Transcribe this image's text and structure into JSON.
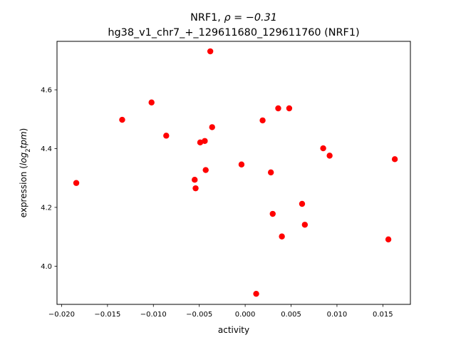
{
  "chart_data": {
    "type": "scatter",
    "title_line1_prefix": "NRF1, ",
    "title_line1_math": "ρ = −0.31",
    "title_line2": "hg38_v1_chr7_+_129611680_129611760 (NRF1)",
    "xlabel": "activity",
    "ylabel_prefix": "expression (",
    "ylabel_math": "log",
    "ylabel_sub": "2",
    "ylabel_math2": "tpm",
    "ylabel_suffix": ")",
    "xlim": [
      -0.0205,
      0.018
    ],
    "ylim": [
      3.87,
      4.765
    ],
    "x_ticks": [
      {
        "value": -0.02,
        "label": "−0.020"
      },
      {
        "value": -0.015,
        "label": "−0.015"
      },
      {
        "value": -0.01,
        "label": "−0.010"
      },
      {
        "value": -0.005,
        "label": "−0.005"
      },
      {
        "value": 0.0,
        "label": "0.000"
      },
      {
        "value": 0.005,
        "label": "0.005"
      },
      {
        "value": 0.01,
        "label": "0.010"
      },
      {
        "value": 0.015,
        "label": "0.015"
      }
    ],
    "y_ticks": [
      {
        "value": 4.0,
        "label": "4.0"
      },
      {
        "value": 4.2,
        "label": "4.2"
      },
      {
        "value": 4.4,
        "label": "4.4"
      },
      {
        "value": 4.6,
        "label": "4.6"
      }
    ],
    "marker_color": "#ff0000",
    "grid": false,
    "points": [
      {
        "x": -0.0184,
        "y": 4.283
      },
      {
        "x": -0.0134,
        "y": 4.498
      },
      {
        "x": -0.0102,
        "y": 4.557
      },
      {
        "x": -0.0086,
        "y": 4.444
      },
      {
        "x": -0.0055,
        "y": 4.294
      },
      {
        "x": -0.0054,
        "y": 4.265
      },
      {
        "x": -0.0049,
        "y": 4.421
      },
      {
        "x": -0.0044,
        "y": 4.426
      },
      {
        "x": -0.0043,
        "y": 4.327
      },
      {
        "x": -0.0038,
        "y": 4.731
      },
      {
        "x": -0.0036,
        "y": 4.473
      },
      {
        "x": -0.0004,
        "y": 4.346
      },
      {
        "x": 0.0012,
        "y": 3.906
      },
      {
        "x": 0.0019,
        "y": 4.496
      },
      {
        "x": 0.0028,
        "y": 4.319
      },
      {
        "x": 0.003,
        "y": 4.178
      },
      {
        "x": 0.0036,
        "y": 4.537
      },
      {
        "x": 0.004,
        "y": 4.101
      },
      {
        "x": 0.0048,
        "y": 4.537
      },
      {
        "x": 0.0062,
        "y": 4.212
      },
      {
        "x": 0.0065,
        "y": 4.141
      },
      {
        "x": 0.0085,
        "y": 4.401
      },
      {
        "x": 0.0092,
        "y": 4.376
      },
      {
        "x": 0.0156,
        "y": 4.091
      },
      {
        "x": 0.0163,
        "y": 4.364
      }
    ]
  }
}
